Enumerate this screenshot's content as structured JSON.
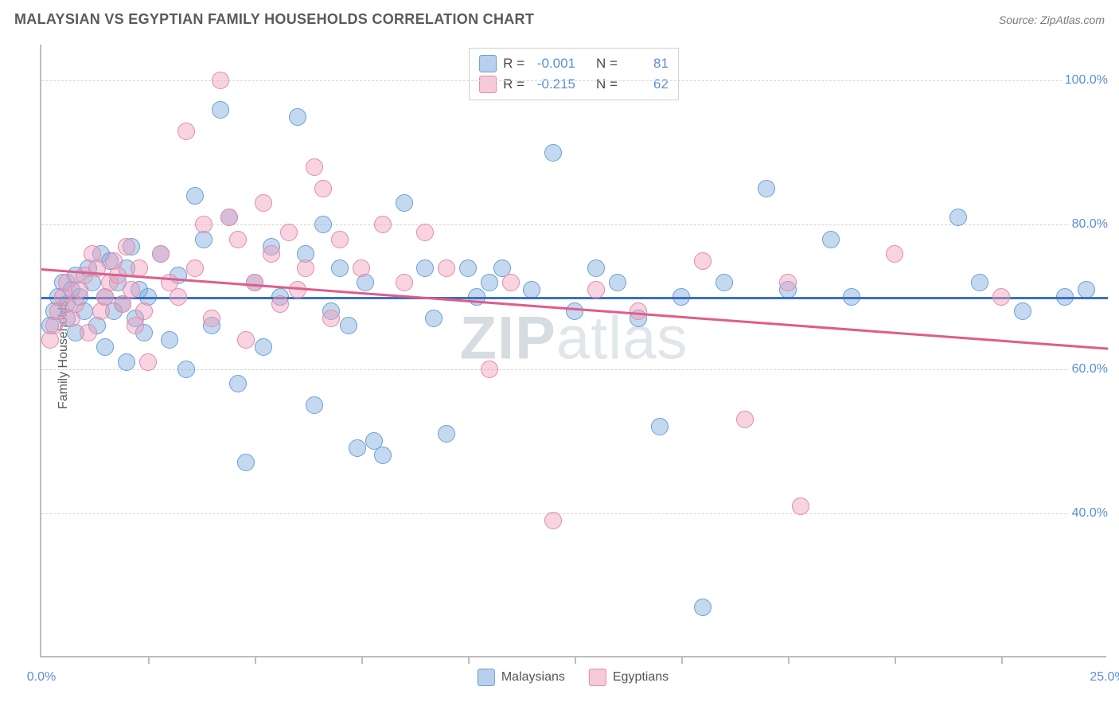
{
  "header": {
    "title": "MALAYSIAN VS EGYPTIAN FAMILY HOUSEHOLDS CORRELATION CHART",
    "source": "Source: ZipAtlas.com"
  },
  "chart": {
    "type": "scatter",
    "y_axis_label": "Family Households",
    "xlim": [
      0,
      25
    ],
    "ylim": [
      20,
      105
    ],
    "background_color": "#ffffff",
    "grid_color": "#d6d6d6",
    "axis_color": "#bdbdbd",
    "y_ticks": [
      40,
      60,
      80,
      100
    ],
    "y_tick_labels": [
      "40.0%",
      "60.0%",
      "80.0%",
      "100.0%"
    ],
    "x_minor_ticks": [
      2.5,
      5,
      7.5,
      10,
      12.5,
      15,
      17.5,
      20,
      22.5
    ],
    "x_tick_labels": [
      {
        "x": 0,
        "label": "0.0%"
      },
      {
        "x": 25,
        "label": "25.0%"
      }
    ],
    "watermark": {
      "bold": "ZIP",
      "rest": "atlas"
    },
    "series": [
      {
        "name": "Malaysians",
        "color_fill": "rgba(125,170,222,0.45)",
        "color_stroke": "#6a9fd6",
        "marker_size": 22,
        "R": "-0.001",
        "N": "81",
        "trend": {
          "y_at_x0": 70,
          "y_at_xmax": 70,
          "color": "#3b6fc4"
        },
        "points": [
          [
            0.2,
            66
          ],
          [
            0.3,
            68
          ],
          [
            0.4,
            70
          ],
          [
            0.5,
            72
          ],
          [
            0.6,
            67
          ],
          [
            0.6,
            69
          ],
          [
            0.7,
            71
          ],
          [
            0.8,
            73
          ],
          [
            0.8,
            65
          ],
          [
            0.9,
            70
          ],
          [
            1.0,
            68
          ],
          [
            1.1,
            74
          ],
          [
            1.2,
            72
          ],
          [
            1.3,
            66
          ],
          [
            1.4,
            76
          ],
          [
            1.5,
            70
          ],
          [
            1.5,
            63
          ],
          [
            1.6,
            75
          ],
          [
            1.7,
            68
          ],
          [
            1.8,
            72
          ],
          [
            1.9,
            69
          ],
          [
            2.0,
            74
          ],
          [
            2.0,
            61
          ],
          [
            2.1,
            77
          ],
          [
            2.2,
            67
          ],
          [
            2.3,
            71
          ],
          [
            2.4,
            65
          ],
          [
            2.5,
            70
          ],
          [
            2.8,
            76
          ],
          [
            3.0,
            64
          ],
          [
            3.2,
            73
          ],
          [
            3.4,
            60
          ],
          [
            3.6,
            84
          ],
          [
            3.8,
            78
          ],
          [
            4.0,
            66
          ],
          [
            4.2,
            96
          ],
          [
            4.4,
            81
          ],
          [
            4.6,
            58
          ],
          [
            4.8,
            47
          ],
          [
            5.0,
            72
          ],
          [
            5.2,
            63
          ],
          [
            5.4,
            77
          ],
          [
            5.6,
            70
          ],
          [
            6.0,
            95
          ],
          [
            6.2,
            76
          ],
          [
            6.4,
            55
          ],
          [
            6.6,
            80
          ],
          [
            6.8,
            68
          ],
          [
            7.0,
            74
          ],
          [
            7.2,
            66
          ],
          [
            7.4,
            49
          ],
          [
            7.6,
            72
          ],
          [
            7.8,
            50
          ],
          [
            8.0,
            48
          ],
          [
            8.5,
            83
          ],
          [
            9.0,
            74
          ],
          [
            9.2,
            67
          ],
          [
            9.5,
            51
          ],
          [
            10.0,
            74
          ],
          [
            10.2,
            70
          ],
          [
            10.5,
            72
          ],
          [
            10.8,
            74
          ],
          [
            11.5,
            71
          ],
          [
            12.0,
            90
          ],
          [
            12.5,
            68
          ],
          [
            13.0,
            74
          ],
          [
            13.5,
            72
          ],
          [
            14.0,
            67
          ],
          [
            14.5,
            52
          ],
          [
            15.0,
            70
          ],
          [
            15.5,
            27
          ],
          [
            16.0,
            72
          ],
          [
            17.0,
            85
          ],
          [
            17.5,
            71
          ],
          [
            18.5,
            78
          ],
          [
            19.0,
            70
          ],
          [
            21.5,
            81
          ],
          [
            22.0,
            72
          ],
          [
            23.0,
            68
          ],
          [
            24.0,
            70
          ],
          [
            24.5,
            71
          ]
        ]
      },
      {
        "name": "Egyptians",
        "color_fill": "rgba(240,158,186,0.45)",
        "color_stroke": "#e38aa9",
        "marker_size": 22,
        "R": "-0.215",
        "N": "62",
        "trend": {
          "y_at_x0": 74,
          "y_at_xmax": 63,
          "color": "#e05c8a"
        },
        "points": [
          [
            0.2,
            64
          ],
          [
            0.3,
            66
          ],
          [
            0.4,
            68
          ],
          [
            0.5,
            70
          ],
          [
            0.6,
            72
          ],
          [
            0.7,
            67
          ],
          [
            0.8,
            69
          ],
          [
            0.9,
            71
          ],
          [
            1.0,
            73
          ],
          [
            1.1,
            65
          ],
          [
            1.2,
            76
          ],
          [
            1.3,
            74
          ],
          [
            1.4,
            68
          ],
          [
            1.5,
            70
          ],
          [
            1.6,
            72
          ],
          [
            1.7,
            75
          ],
          [
            1.8,
            73
          ],
          [
            1.9,
            69
          ],
          [
            2.0,
            77
          ],
          [
            2.1,
            71
          ],
          [
            2.2,
            66
          ],
          [
            2.3,
            74
          ],
          [
            2.4,
            68
          ],
          [
            2.5,
            61
          ],
          [
            2.8,
            76
          ],
          [
            3.0,
            72
          ],
          [
            3.2,
            70
          ],
          [
            3.4,
            93
          ],
          [
            3.6,
            74
          ],
          [
            3.8,
            80
          ],
          [
            4.0,
            67
          ],
          [
            4.2,
            100
          ],
          [
            4.4,
            81
          ],
          [
            4.6,
            78
          ],
          [
            4.8,
            64
          ],
          [
            5.0,
            72
          ],
          [
            5.2,
            83
          ],
          [
            5.4,
            76
          ],
          [
            5.6,
            69
          ],
          [
            5.8,
            79
          ],
          [
            6.0,
            71
          ],
          [
            6.2,
            74
          ],
          [
            6.4,
            88
          ],
          [
            6.6,
            85
          ],
          [
            6.8,
            67
          ],
          [
            7.0,
            78
          ],
          [
            7.5,
            74
          ],
          [
            8.0,
            80
          ],
          [
            8.5,
            72
          ],
          [
            9.0,
            79
          ],
          [
            9.5,
            74
          ],
          [
            10.5,
            60
          ],
          [
            11.0,
            72
          ],
          [
            12.0,
            39
          ],
          [
            13.0,
            71
          ],
          [
            14.0,
            68
          ],
          [
            15.5,
            75
          ],
          [
            16.5,
            53
          ],
          [
            17.5,
            72
          ],
          [
            17.8,
            41
          ],
          [
            20.0,
            76
          ],
          [
            22.5,
            70
          ]
        ]
      }
    ],
    "legend_bottom": [
      {
        "swatch": "blue",
        "label": "Malaysians"
      },
      {
        "swatch": "pink",
        "label": "Egyptians"
      }
    ],
    "legend_top_labels": {
      "R": "R =",
      "N": "N ="
    }
  }
}
